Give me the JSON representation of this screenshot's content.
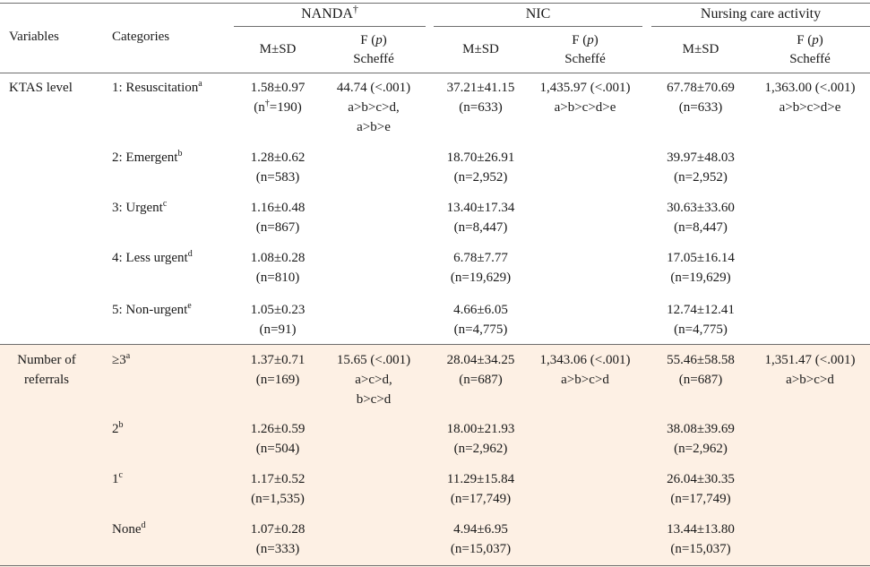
{
  "headers": {
    "variables": "Variables",
    "categories": "Categories",
    "groups": [
      {
        "title": "NANDA",
        "marker": "†"
      },
      {
        "title": "NIC",
        "marker": ""
      },
      {
        "title": "Nursing care activity",
        "marker": ""
      }
    ],
    "msd": "M±SD",
    "f_line1_pre": "F (",
    "f_line1_p": "p",
    "f_line1_post": ")",
    "f_line2": "Scheffé"
  },
  "sections": [
    {
      "variable_lines": [
        "KTAS level"
      ],
      "rows": [
        {
          "category": "1: Resuscitation",
          "cat_sup": "a",
          "nanda": {
            "msd": "1.58±0.97",
            "n_pre": "(n",
            "n_sup": "†",
            "n_post": "=190)",
            "f": [
              "44.74 (<.001)",
              "a>b>c>d,",
              "a>b>e"
            ]
          },
          "nic": {
            "msd": "37.21±41.15",
            "n": "(n=633)",
            "f": [
              "1,435.97 (<.001)",
              "a>b>c>d>e"
            ]
          },
          "nca": {
            "msd": "67.78±70.69",
            "n": "(n=633)",
            "f": [
              "1,363.00 (<.001)",
              "a>b>c>d>e"
            ]
          }
        },
        {
          "category": "2: Emergent",
          "cat_sup": "b",
          "nanda": {
            "msd": "1.28±0.62",
            "n": "(n=583)"
          },
          "nic": {
            "msd": "18.70±26.91",
            "n": "(n=2,952)"
          },
          "nca": {
            "msd": "39.97±48.03",
            "n": "(n=2,952)"
          }
        },
        {
          "category": "3: Urgent",
          "cat_sup": "c",
          "nanda": {
            "msd": "1.16±0.48",
            "n": "(n=867)"
          },
          "nic": {
            "msd": "13.40±17.34",
            "n": "(n=8,447)"
          },
          "nca": {
            "msd": "30.63±33.60",
            "n": "(n=8,447)"
          }
        },
        {
          "category": "4: Less urgent",
          "cat_sup": "d",
          "nanda": {
            "msd": "1.08±0.28",
            "n": "(n=810)"
          },
          "nic": {
            "msd": "6.78±7.77",
            "n": "(n=19,629)"
          },
          "nca": {
            "msd": "17.05±16.14",
            "n": "(n=19,629)"
          }
        },
        {
          "category": "5: Non-urgent",
          "cat_sup": "e",
          "nanda": {
            "msd": "1.05±0.23",
            "n": "(n=91)"
          },
          "nic": {
            "msd": "4.66±6.05",
            "n": "(n=4,775)"
          },
          "nca": {
            "msd": "12.74±12.41",
            "n": "(n=4,775)"
          }
        }
      ]
    },
    {
      "variable_lines": [
        "Number of",
        "referrals"
      ],
      "rows": [
        {
          "category": "≥3",
          "cat_sup": "a",
          "nanda": {
            "msd": "1.37±0.71",
            "n": "(n=169)",
            "f": [
              "15.65 (<.001)",
              "a>c>d,",
              "b>c>d"
            ]
          },
          "nic": {
            "msd": "28.04±34.25",
            "n": "(n=687)",
            "f": [
              "1,343.06 (<.001)",
              "a>b>c>d"
            ]
          },
          "nca": {
            "msd": "55.46±58.58",
            "n": "(n=687)",
            "f": [
              "1,351.47 (<.001)",
              "a>b>c>d"
            ]
          }
        },
        {
          "category": "2",
          "cat_sup": "b",
          "nanda": {
            "msd": "1.26±0.59",
            "n": "(n=504)"
          },
          "nic": {
            "msd": "18.00±21.93",
            "n": "(n=2,962)"
          },
          "nca": {
            "msd": "38.08±39.69",
            "n": "(n=2,962)"
          }
        },
        {
          "category": "1",
          "cat_sup": "c",
          "nanda": {
            "msd": "1.17±0.52",
            "n": "(n=1,535)"
          },
          "nic": {
            "msd": "11.29±15.84",
            "n": "(n=17,749)"
          },
          "nca": {
            "msd": "26.04±30.35",
            "n": "(n=17,749)"
          }
        },
        {
          "category": "None",
          "cat_sup": "d",
          "nanda": {
            "msd": "1.07±0.28",
            "n": "(n=333)"
          },
          "nic": {
            "msd": "4.94±6.95",
            "n": "(n=15,037)"
          },
          "nca": {
            "msd": "13.44±13.80",
            "n": "(n=15,037)"
          }
        }
      ]
    }
  ]
}
